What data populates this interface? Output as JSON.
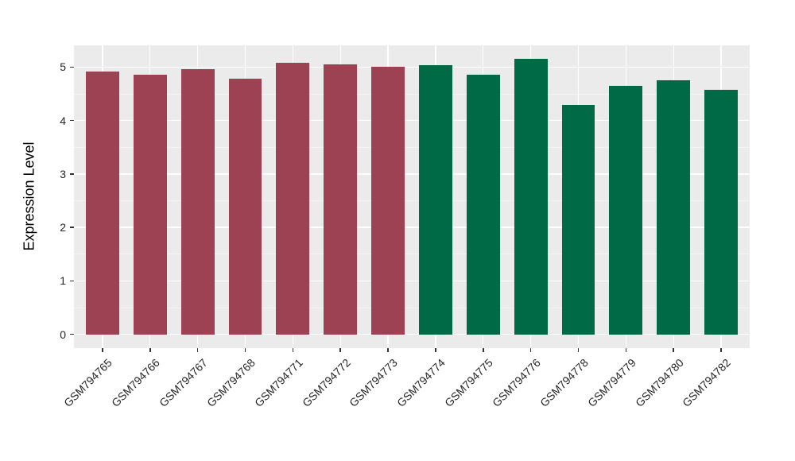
{
  "chart_data": {
    "type": "bar",
    "title": "",
    "xlabel": "",
    "ylabel": "Expression Level",
    "categories": [
      "GSM794765",
      "GSM794766",
      "GSM794767",
      "GSM794768",
      "GSM794771",
      "GSM794772",
      "GSM794773",
      "GSM794774",
      "GSM794775",
      "GSM794776",
      "GSM794778",
      "GSM794779",
      "GSM794780",
      "GSM794782"
    ],
    "values": [
      4.92,
      4.86,
      4.96,
      4.78,
      5.08,
      5.05,
      5.0,
      5.04,
      4.85,
      5.15,
      4.29,
      4.65,
      4.76,
      4.57
    ],
    "bar_groups": [
      "g1",
      "g1",
      "g1",
      "g1",
      "g1",
      "g1",
      "g1",
      "g2",
      "g2",
      "g2",
      "g2",
      "g2",
      "g2",
      "g2"
    ],
    "group_colors": {
      "g1": "#9C4252",
      "g2": "#006946"
    },
    "yticks": [
      0,
      1,
      2,
      3,
      4,
      5
    ],
    "ylim": [
      -0.2575,
      5.4075
    ],
    "xlim": [
      0.4,
      14.6
    ],
    "bar_width_frac": 0.7,
    "legend": "none",
    "grid": "white major+minor horizontal, white major vertical, grey panel",
    "panel_bg": "#EBEBEB",
    "gridline_color": "#FFFFFF",
    "axis_text_color": "#262626"
  }
}
